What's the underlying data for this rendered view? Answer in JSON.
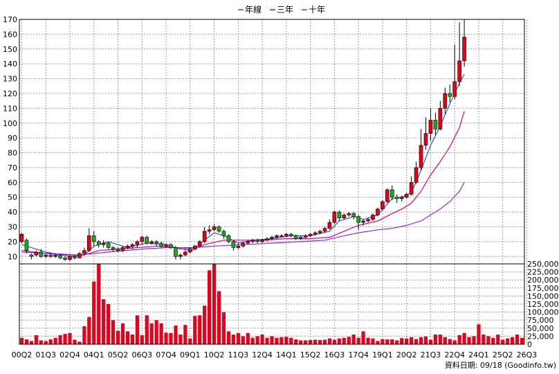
{
  "legend": [
    {
      "label": "年線",
      "color": "#1f5fd6"
    },
    {
      "label": "三年",
      "color": "#e0007a"
    },
    {
      "label": "十年",
      "color": "#8a2be2"
    }
  ],
  "source_note": "資料日期: 09/18  (Goodinfo.tw)",
  "colors": {
    "up_candle": "#e6001a",
    "down_candle": "#1aaa1a",
    "volume_bar": "#e6001a",
    "grid": "#9a9a9a",
    "frame": "#000000"
  },
  "chart_data": [
    {
      "type": "candlestick",
      "title": "",
      "ylim": [
        5,
        170
      ],
      "y_ticks": [
        10,
        20,
        30,
        40,
        50,
        60,
        70,
        80,
        90,
        100,
        110,
        120,
        130,
        140,
        150,
        160,
        170
      ],
      "grid": true,
      "legend_position": "top-center",
      "x_ticks": [
        "00Q2",
        "01Q3",
        "02Q4",
        "04Q1",
        "05Q2",
        "06Q3",
        "07Q4",
        "09Q1",
        "10Q2",
        "11Q3",
        "12Q4",
        "14Q1",
        "15Q2",
        "16Q3",
        "17Q4",
        "19Q1",
        "20Q2",
        "21Q3",
        "22Q4",
        "24Q1",
        "25Q2",
        "26Q3"
      ],
      "x_tick_periods": [
        0,
        5,
        10,
        15,
        20,
        25,
        30,
        35,
        40,
        45,
        50,
        55,
        60,
        65,
        70,
        75,
        80,
        85,
        90,
        95,
        100,
        105
      ],
      "candles": [
        [
          0,
          20,
          25,
          19,
          26
        ],
        [
          1,
          21,
          14,
          12,
          22
        ],
        [
          2,
          11,
          10,
          8,
          12
        ],
        [
          3,
          11,
          13,
          10,
          14
        ],
        [
          4,
          13,
          10,
          9,
          15
        ],
        [
          5,
          10,
          11,
          9,
          12
        ],
        [
          6,
          11,
          10,
          9,
          12
        ],
        [
          7,
          10,
          11,
          9,
          12
        ],
        [
          8,
          11,
          9,
          8,
          12
        ],
        [
          9,
          9,
          8,
          7,
          10
        ],
        [
          10,
          8,
          10,
          7,
          11
        ],
        [
          11,
          10,
          9,
          8,
          11
        ],
        [
          12,
          9,
          12,
          9,
          13
        ],
        [
          13,
          12,
          14,
          11,
          16
        ],
        [
          14,
          14,
          24,
          13,
          29
        ],
        [
          15,
          24,
          20,
          17,
          27
        ],
        [
          16,
          20,
          18,
          16,
          21
        ],
        [
          17,
          18,
          19,
          16,
          21
        ],
        [
          18,
          19,
          16,
          15,
          20
        ],
        [
          19,
          16,
          15,
          13,
          17
        ],
        [
          20,
          15,
          14,
          13,
          16
        ],
        [
          21,
          14,
          16,
          13,
          17
        ],
        [
          22,
          16,
          17,
          15,
          18
        ],
        [
          23,
          17,
          18,
          15,
          19
        ],
        [
          24,
          18,
          20,
          16,
          21
        ],
        [
          25,
          20,
          23,
          18,
          24
        ],
        [
          26,
          23,
          19,
          18,
          24
        ],
        [
          27,
          19,
          20,
          18,
          21
        ],
        [
          28,
          20,
          19,
          17,
          21
        ],
        [
          29,
          19,
          17,
          16,
          20
        ],
        [
          30,
          17,
          18,
          16,
          19
        ],
        [
          31,
          18,
          16,
          15,
          19
        ],
        [
          32,
          16,
          10,
          8,
          17
        ],
        [
          33,
          10,
          11,
          8,
          12
        ],
        [
          34,
          11,
          13,
          10,
          14
        ],
        [
          35,
          13,
          15,
          12,
          16
        ],
        [
          36,
          15,
          17,
          14,
          18
        ],
        [
          37,
          17,
          20,
          16,
          21
        ],
        [
          38,
          20,
          27,
          19,
          30
        ],
        [
          39,
          27,
          28,
          25,
          31
        ],
        [
          40,
          28,
          30,
          27,
          32
        ],
        [
          41,
          30,
          27,
          26,
          31
        ],
        [
          42,
          27,
          24,
          22,
          28
        ],
        [
          43,
          24,
          20,
          19,
          25
        ],
        [
          44,
          20,
          16,
          14,
          21
        ],
        [
          45,
          16,
          17,
          15,
          19
        ],
        [
          46,
          17,
          19,
          16,
          20
        ],
        [
          47,
          19,
          20,
          18,
          21
        ],
        [
          48,
          20,
          21,
          19,
          22
        ],
        [
          49,
          21,
          20,
          19,
          22
        ],
        [
          50,
          20,
          21,
          19,
          22
        ],
        [
          51,
          21,
          22,
          20,
          23
        ],
        [
          52,
          22,
          23,
          21,
          24
        ],
        [
          53,
          23,
          24,
          22,
          25
        ],
        [
          54,
          24,
          24,
          23,
          25
        ],
        [
          55,
          24,
          25,
          23,
          26
        ],
        [
          56,
          25,
          24,
          23,
          26
        ],
        [
          57,
          24,
          22,
          21,
          25
        ],
        [
          58,
          22,
          23,
          21,
          24
        ],
        [
          59,
          23,
          24,
          22,
          25
        ],
        [
          60,
          24,
          25,
          23,
          26
        ],
        [
          61,
          25,
          26,
          24,
          27
        ],
        [
          62,
          26,
          27,
          25,
          28
        ],
        [
          63,
          27,
          29,
          26,
          30
        ],
        [
          64,
          29,
          33,
          28,
          35
        ],
        [
          65,
          33,
          40,
          32,
          41
        ],
        [
          66,
          40,
          36,
          34,
          41
        ],
        [
          67,
          36,
          38,
          35,
          39
        ],
        [
          68,
          38,
          39,
          37,
          40
        ],
        [
          69,
          39,
          37,
          35,
          40
        ],
        [
          70,
          37,
          33,
          28,
          38
        ],
        [
          71,
          33,
          34,
          31,
          35
        ],
        [
          72,
          34,
          35,
          33,
          36
        ],
        [
          73,
          35,
          38,
          34,
          39
        ],
        [
          74,
          38,
          42,
          37,
          43
        ],
        [
          75,
          42,
          47,
          41,
          48
        ],
        [
          76,
          47,
          55,
          46,
          56
        ],
        [
          77,
          55,
          50,
          48,
          58
        ],
        [
          78,
          50,
          49,
          46,
          52
        ],
        [
          79,
          49,
          50,
          47,
          51
        ],
        [
          80,
          50,
          52,
          49,
          53
        ],
        [
          81,
          52,
          60,
          51,
          64
        ],
        [
          82,
          60,
          70,
          59,
          74
        ],
        [
          83,
          70,
          85,
          68,
          96
        ],
        [
          84,
          85,
          93,
          82,
          104
        ],
        [
          85,
          93,
          102,
          88,
          110
        ],
        [
          86,
          102,
          96,
          92,
          107
        ],
        [
          87,
          96,
          110,
          95,
          115
        ],
        [
          88,
          110,
          120,
          106,
          124
        ],
        [
          89,
          120,
          118,
          114,
          126
        ],
        [
          90,
          118,
          128,
          116,
          153
        ],
        [
          91,
          128,
          142,
          125,
          168
        ],
        [
          92,
          142,
          158,
          138,
          170
        ]
      ],
      "series": [
        {
          "name": "年線",
          "values": [
            [
              0,
              18
            ],
            [
              5,
              13
            ],
            [
              10,
              10
            ],
            [
              13,
              11
            ],
            [
              15,
              17
            ],
            [
              18,
              20
            ],
            [
              22,
              16
            ],
            [
              26,
              19
            ],
            [
              30,
              18
            ],
            [
              33,
              15
            ],
            [
              36,
              16
            ],
            [
              38,
              21
            ],
            [
              40,
              26
            ],
            [
              42,
              24
            ],
            [
              45,
              19
            ],
            [
              48,
              21
            ],
            [
              52,
              22
            ],
            [
              56,
              24
            ],
            [
              60,
              24
            ],
            [
              64,
              27
            ],
            [
              66,
              34
            ],
            [
              69,
              37
            ],
            [
              71,
              35
            ],
            [
              74,
              38
            ],
            [
              77,
              49
            ],
            [
              79,
              50
            ],
            [
              81,
              53
            ],
            [
              83,
              68
            ],
            [
              85,
              85
            ],
            [
              87,
              98
            ],
            [
              89,
              113
            ],
            [
              91,
              127
            ],
            [
              92,
              133
            ]
          ]
        },
        {
          "name": "三年",
          "values": [
            [
              0,
              14
            ],
            [
              5,
              12
            ],
            [
              10,
              11
            ],
            [
              13,
              11
            ],
            [
              16,
              14
            ],
            [
              20,
              15
            ],
            [
              24,
              16
            ],
            [
              28,
              17
            ],
            [
              32,
              16
            ],
            [
              35,
              14
            ],
            [
              38,
              18
            ],
            [
              42,
              21
            ],
            [
              46,
              21
            ],
            [
              50,
              21
            ],
            [
              55,
              22
            ],
            [
              60,
              22
            ],
            [
              64,
              23
            ],
            [
              67,
              27
            ],
            [
              70,
              31
            ],
            [
              74,
              34
            ],
            [
              77,
              39
            ],
            [
              79,
              42
            ],
            [
              81,
              46
            ],
            [
              83,
              54
            ],
            [
              85,
              65
            ],
            [
              87,
              74
            ],
            [
              89,
              84
            ],
            [
              91,
              97
            ],
            [
              92,
              108
            ]
          ]
        },
        {
          "name": "十年",
          "values": [
            [
              0,
              13
            ],
            [
              6,
              12
            ],
            [
              12,
              11
            ],
            [
              18,
              13
            ],
            [
              25,
              15
            ],
            [
              30,
              16
            ],
            [
              36,
              16
            ],
            [
              40,
              17
            ],
            [
              46,
              18
            ],
            [
              52,
              19
            ],
            [
              58,
              20
            ],
            [
              63,
              21
            ],
            [
              67,
              24
            ],
            [
              70,
              26
            ],
            [
              74,
              28
            ],
            [
              77,
              29
            ],
            [
              80,
              31
            ],
            [
              83,
              34
            ],
            [
              85,
              38
            ],
            [
              87,
              42
            ],
            [
              89,
              47
            ],
            [
              91,
              54
            ],
            [
              92,
              60
            ]
          ]
        }
      ]
    },
    {
      "type": "bar",
      "title": "",
      "ylim": [
        0,
        250000
      ],
      "y_ticks": [
        "0",
        "25,000",
        "50,000",
        "75,000",
        "100,000",
        "125,000",
        "150,000",
        "175,000",
        "200,000",
        "225,000",
        "250,000"
      ],
      "y_tick_values": [
        0,
        25000,
        50000,
        75000,
        100000,
        125000,
        150000,
        175000,
        200000,
        225000,
        250000
      ],
      "grid": true,
      "values": [
        20000,
        15000,
        10000,
        28000,
        12000,
        10000,
        15000,
        20000,
        28000,
        32000,
        35000,
        14000,
        8000,
        56000,
        85000,
        195000,
        255000,
        140000,
        125000,
        75000,
        42000,
        65000,
        40000,
        30000,
        90000,
        28000,
        90000,
        65000,
        75000,
        65000,
        36000,
        35000,
        58000,
        30000,
        60000,
        18000,
        88000,
        90000,
        120000,
        230000,
        255000,
        165000,
        100000,
        40000,
        30000,
        35000,
        25000,
        35000,
        20000,
        25000,
        30000,
        20000,
        25000,
        20000,
        22000,
        23000,
        20000,
        15000,
        12000,
        12000,
        13000,
        14000,
        13000,
        14000,
        18000,
        14000,
        18000,
        20000,
        23000,
        30000,
        20000,
        40000,
        20000,
        18000,
        10000,
        16000,
        15000,
        15000,
        12000,
        19000,
        18000,
        22000,
        16000,
        22000,
        24000,
        14000,
        30000,
        30000,
        22000,
        16000,
        12000,
        28000,
        35000,
        22000,
        25000,
        62000,
        30000,
        25000,
        20000,
        30000,
        14000,
        18000,
        22000,
        30000,
        20000
      ]
    }
  ]
}
